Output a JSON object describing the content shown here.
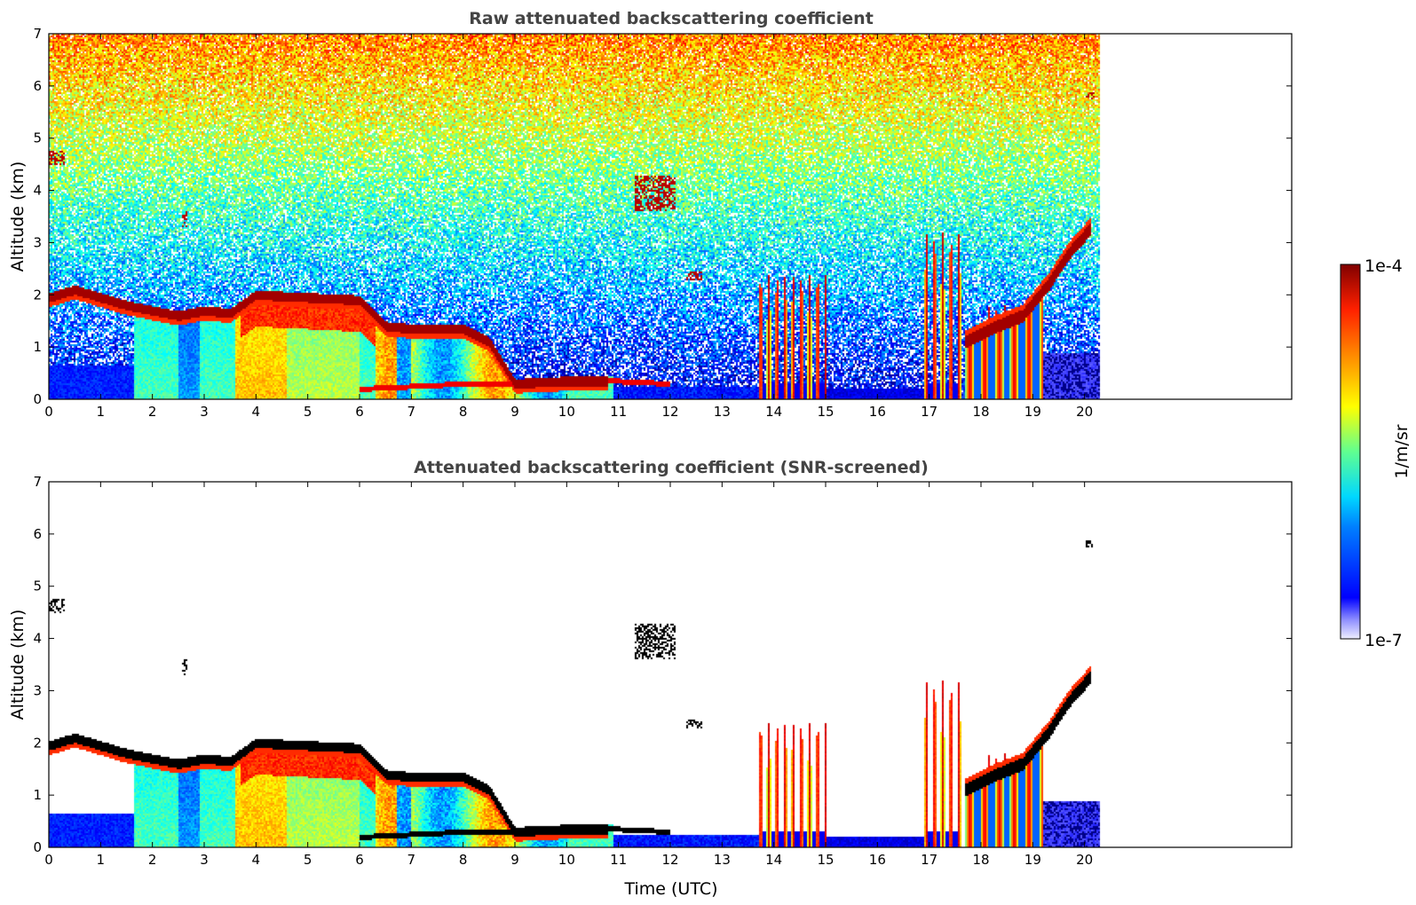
{
  "colors": {
    "background": "#ffffff",
    "frame": "#000000",
    "title": "#444444",
    "black_mask": "#000000",
    "colormap": "jet"
  },
  "colorbar": {
    "max_label": "1e-4",
    "min_label": "1e-7",
    "unit_label": "1/m/sr",
    "scale": "log",
    "range": [
      1e-07,
      0.0001
    ]
  },
  "chart_data": [
    {
      "type": "heatmap",
      "title": "Raw attenuated backscattering coefficient",
      "xlabel": "",
      "ylabel": "Altitude (km)",
      "xlim": [
        0,
        24
      ],
      "ylim": [
        0,
        7
      ],
      "x_data_end": 20.3,
      "xticks": [
        "0",
        "1",
        "2",
        "3",
        "4",
        "5",
        "6",
        "7",
        "8",
        "9",
        "10",
        "11",
        "12",
        "13",
        "14",
        "15",
        "16",
        "17",
        "18",
        "19",
        "20"
      ],
      "yticks": [
        "0",
        "1",
        "2",
        "3",
        "4",
        "5",
        "6",
        "7"
      ],
      "screened": false,
      "cloud_layer_top_km": [
        [
          0.0,
          1.95
        ],
        [
          0.5,
          2.1
        ],
        [
          1.0,
          1.95
        ],
        [
          1.5,
          1.8
        ],
        [
          2.0,
          1.7
        ],
        [
          2.5,
          1.6
        ],
        [
          3.0,
          1.7
        ],
        [
          3.5,
          1.65
        ],
        [
          4.0,
          2.0
        ],
        [
          5.0,
          1.95
        ],
        [
          6.0,
          1.9
        ],
        [
          6.5,
          1.4
        ],
        [
          7.0,
          1.35
        ],
        [
          8.0,
          1.35
        ],
        [
          8.5,
          1.1
        ],
        [
          9.0,
          0.3
        ],
        [
          10.0,
          0.35
        ],
        [
          10.8,
          0.35
        ]
      ],
      "low_layer_km": [
        [
          6.0,
          0.2
        ],
        [
          7.0,
          0.25
        ],
        [
          8.0,
          0.3
        ],
        [
          9.0,
          0.3
        ],
        [
          10.0,
          0.35
        ],
        [
          11.0,
          0.35
        ],
        [
          12.0,
          0.3
        ]
      ],
      "rising_layer_km": [
        [
          17.7,
          1.1
        ],
        [
          18.3,
          1.4
        ],
        [
          18.8,
          1.6
        ],
        [
          19.3,
          2.2
        ],
        [
          19.7,
          2.8
        ],
        [
          20.1,
          3.25
        ]
      ],
      "elevated_features_km": [
        {
          "x": [
            0.0,
            0.3
          ],
          "y": [
            4.5,
            4.75
          ]
        },
        {
          "x": [
            11.3,
            12.1
          ],
          "y": [
            3.6,
            4.3
          ]
        },
        {
          "x": [
            12.3,
            12.6
          ],
          "y": [
            2.3,
            2.45
          ]
        },
        {
          "x": [
            20.0,
            20.2
          ],
          "y": [
            5.75,
            5.9
          ]
        },
        {
          "x": [
            2.55,
            2.65
          ],
          "y": [
            3.3,
            3.6
          ]
        }
      ],
      "precipitation_columns": [
        {
          "x": [
            13.7,
            15.0
          ],
          "top_km": 2.4
        },
        {
          "x": [
            16.9,
            17.6
          ],
          "top_km": 3.2
        },
        {
          "x": [
            18.1,
            19.2
          ],
          "top_km": 1.8
        }
      ]
    },
    {
      "type": "heatmap",
      "title": "Attenuated backscattering coefficient (SNR-screened)",
      "xlabel": "Time (UTC)",
      "ylabel": "Altitude (km)",
      "xlim": [
        0,
        24
      ],
      "ylim": [
        0,
        7
      ],
      "x_data_end": 20.3,
      "xticks": [
        "0",
        "1",
        "2",
        "3",
        "4",
        "5",
        "6",
        "7",
        "8",
        "9",
        "10",
        "11",
        "12",
        "13",
        "14",
        "15",
        "16",
        "17",
        "18",
        "19",
        "20"
      ],
      "yticks": [
        "0",
        "1",
        "2",
        "3",
        "4",
        "5",
        "6",
        "7"
      ],
      "screened": true
    }
  ]
}
